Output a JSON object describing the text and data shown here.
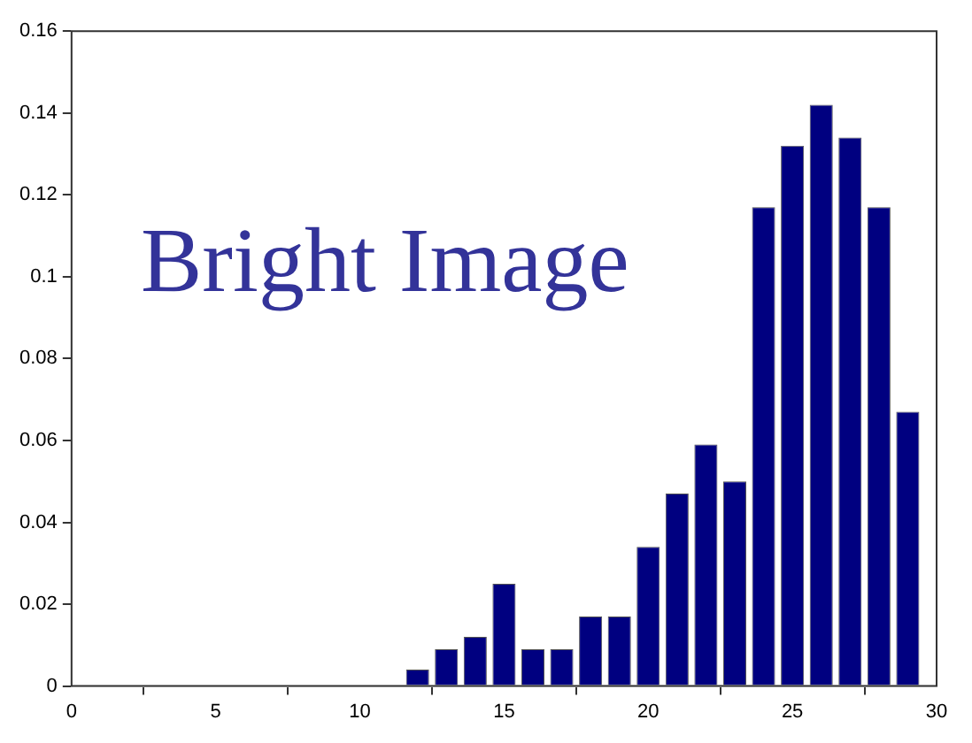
{
  "chart_data": {
    "type": "bar",
    "annotations": [
      "Bright Image"
    ],
    "x": [
      12,
      13,
      14,
      15,
      16,
      17,
      18,
      19,
      20,
      21,
      22,
      23,
      24,
      25,
      26,
      27,
      28,
      29
    ],
    "values": [
      0.004,
      0.009,
      0.012,
      0.025,
      0.009,
      0.009,
      0.017,
      0.017,
      0.034,
      0.047,
      0.059,
      0.05,
      0.117,
      0.132,
      0.142,
      0.134,
      0.117,
      0.067
    ],
    "color": "#000080",
    "xlim": [
      0,
      30
    ],
    "xticks": [
      0,
      5,
      10,
      15,
      20,
      25,
      30
    ],
    "ylim": [
      0,
      0.16
    ],
    "yticks": [
      0,
      0.02,
      0.04,
      0.06,
      0.08,
      0.1,
      0.12,
      0.14,
      0.16
    ],
    "grid": false,
    "legend": false
  }
}
